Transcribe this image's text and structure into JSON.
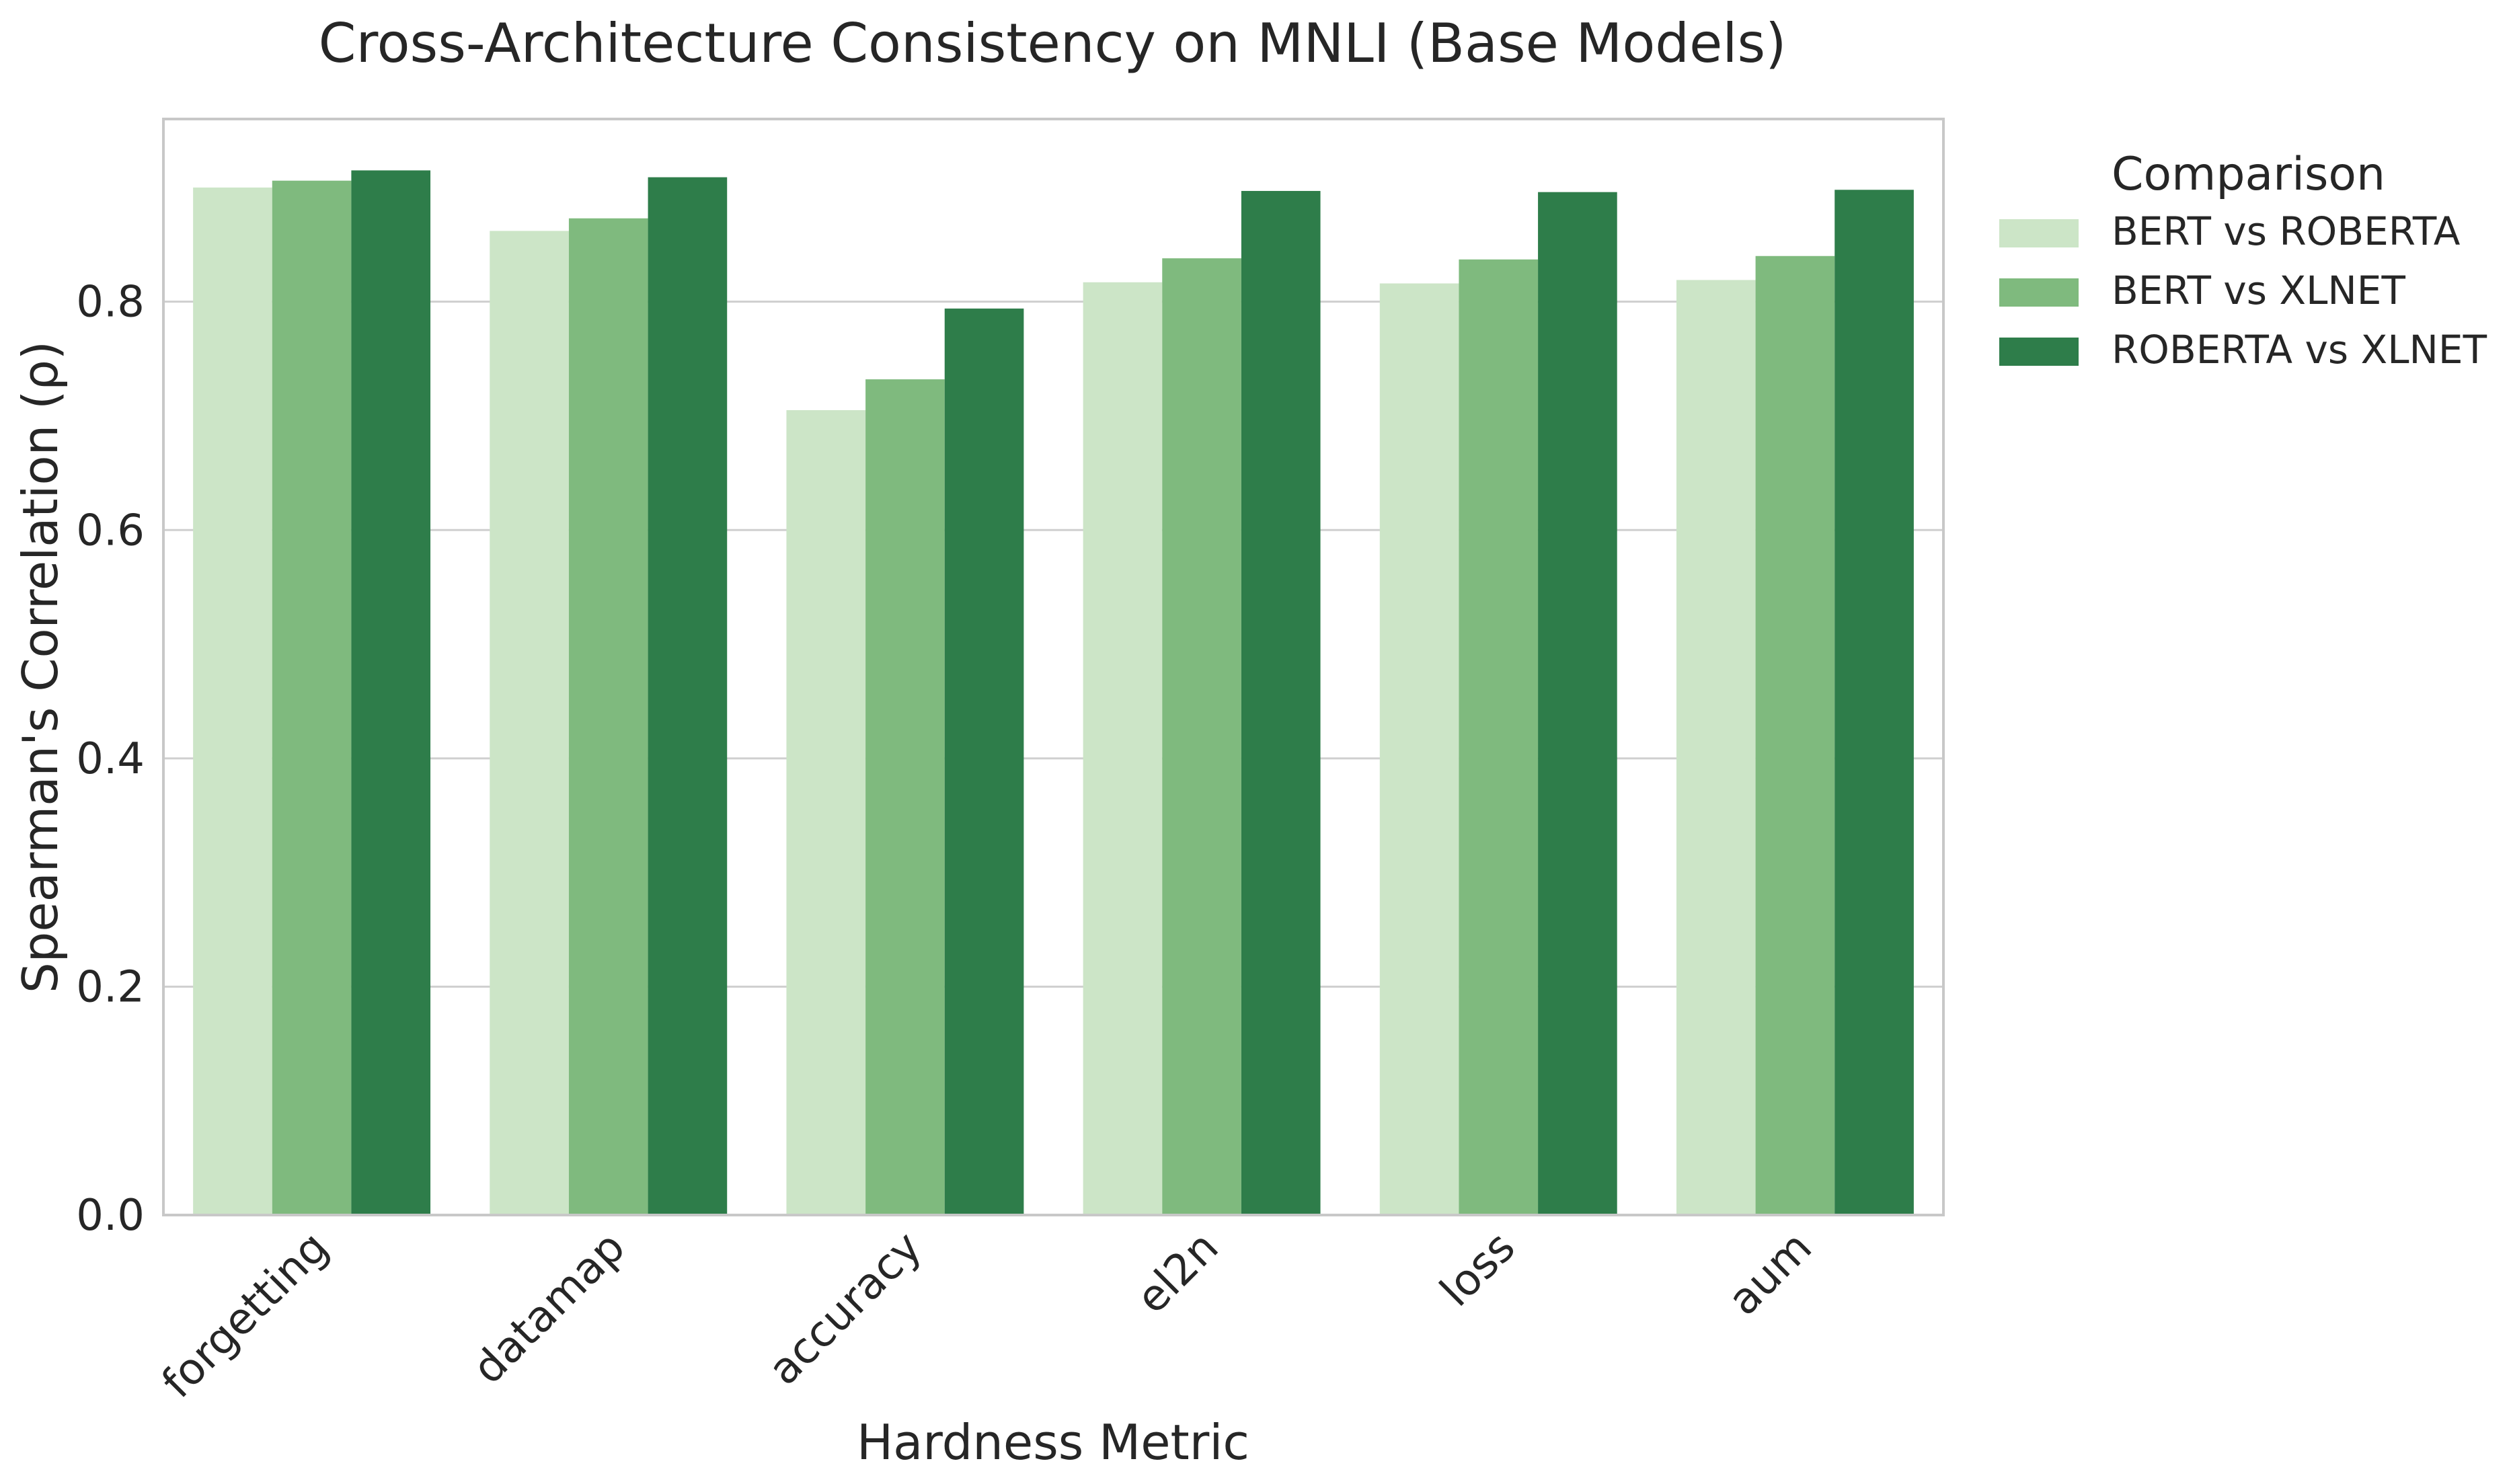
{
  "chart_data": {
    "type": "bar",
    "title": "Cross-Architecture Consistency on MNLI (Base Models)",
    "xlabel": "Hardness Metric",
    "ylabel": "Spearman's Correlation (ρ)",
    "categories": [
      "forgetting",
      "datamap",
      "accuracy",
      "el2n",
      "loss",
      "aum"
    ],
    "series": [
      {
        "name": "BERT vs ROBERTA",
        "color": "#cce5c7",
        "values": [
          0.9,
          0.862,
          0.705,
          0.817,
          0.816,
          0.819
        ]
      },
      {
        "name": "BERT vs XLNET",
        "color": "#7fba7e",
        "values": [
          0.906,
          0.873,
          0.732,
          0.838,
          0.837,
          0.84
        ]
      },
      {
        "name": "ROBERTA vs XLNET",
        "color": "#2e7d4a",
        "values": [
          0.915,
          0.909,
          0.794,
          0.897,
          0.896,
          0.898
        ]
      }
    ],
    "ylim": [
      0,
      0.96
    ],
    "yticks": [
      "0.0",
      "0.2",
      "0.4",
      "0.6",
      "0.8"
    ],
    "grid": true,
    "legend": {
      "title": "Comparison",
      "placement": "outside-right"
    }
  }
}
